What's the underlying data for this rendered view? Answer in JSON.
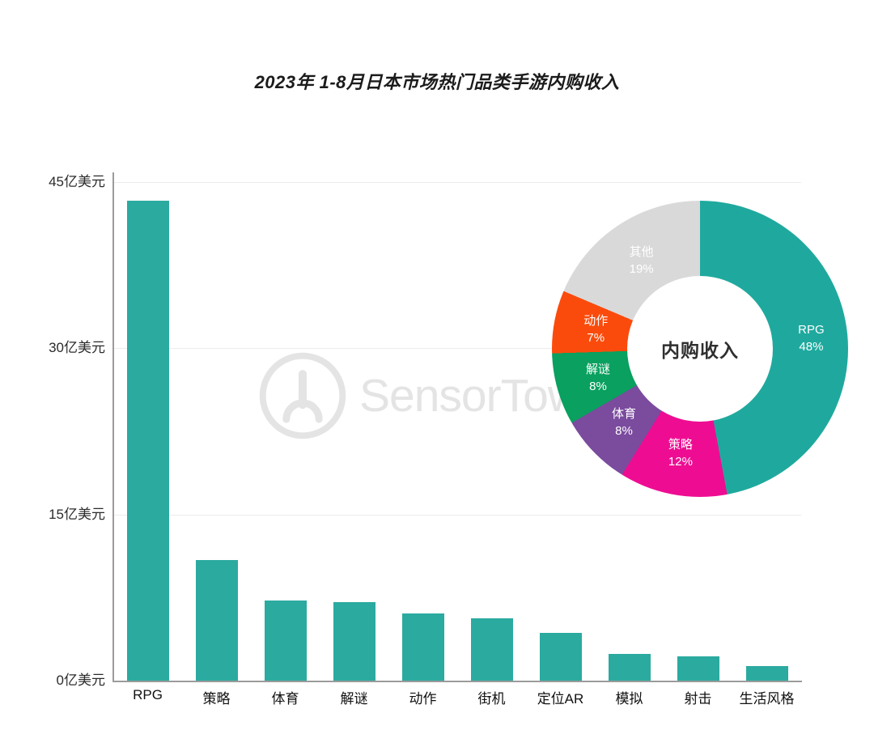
{
  "title": "2023年 1-8月日本市场热门品类手游内购收入",
  "watermark": "SensorTower",
  "chart_data": [
    {
      "type": "bar",
      "title": "2023年 1-8月日本市场热门品类手游内购收入",
      "categories": [
        "RPG",
        "策略",
        "体育",
        "解谜",
        "动作",
        "街机",
        "定位AR",
        "模拟",
        "射击",
        "生活风格"
      ],
      "values": [
        43.3,
        10.9,
        7.2,
        7.1,
        6.1,
        5.6,
        4.3,
        2.4,
        2.2,
        1.3
      ],
      "unit": "亿美元",
      "ylim": [
        0,
        45
      ],
      "yticks": [
        0,
        15,
        30,
        45
      ],
      "ytick_labels": [
        "0亿美元",
        "15亿美元",
        "30亿美元",
        "45亿美元"
      ],
      "bar_color": "#2baaa0",
      "grid": "horizontal-faint",
      "legend": "none"
    },
    {
      "type": "pie",
      "subtype": "donut",
      "center_label": "内购收入",
      "slices": [
        {
          "label": "RPG",
          "pct": 48,
          "color": "#1fa99e"
        },
        {
          "label": "策略",
          "pct": 12,
          "color": "#ee0d92"
        },
        {
          "label": "体育",
          "pct": 8,
          "color": "#7b4b9e"
        },
        {
          "label": "解谜",
          "pct": 8,
          "color": "#0aa05f"
        },
        {
          "label": "动作",
          "pct": 7,
          "color": "#fb4b0c"
        },
        {
          "label": "其他",
          "pct": 19,
          "color": "#d9d9d9"
        }
      ],
      "legend": "in-slice-labels",
      "label_text_color": "#ffffff"
    }
  ]
}
